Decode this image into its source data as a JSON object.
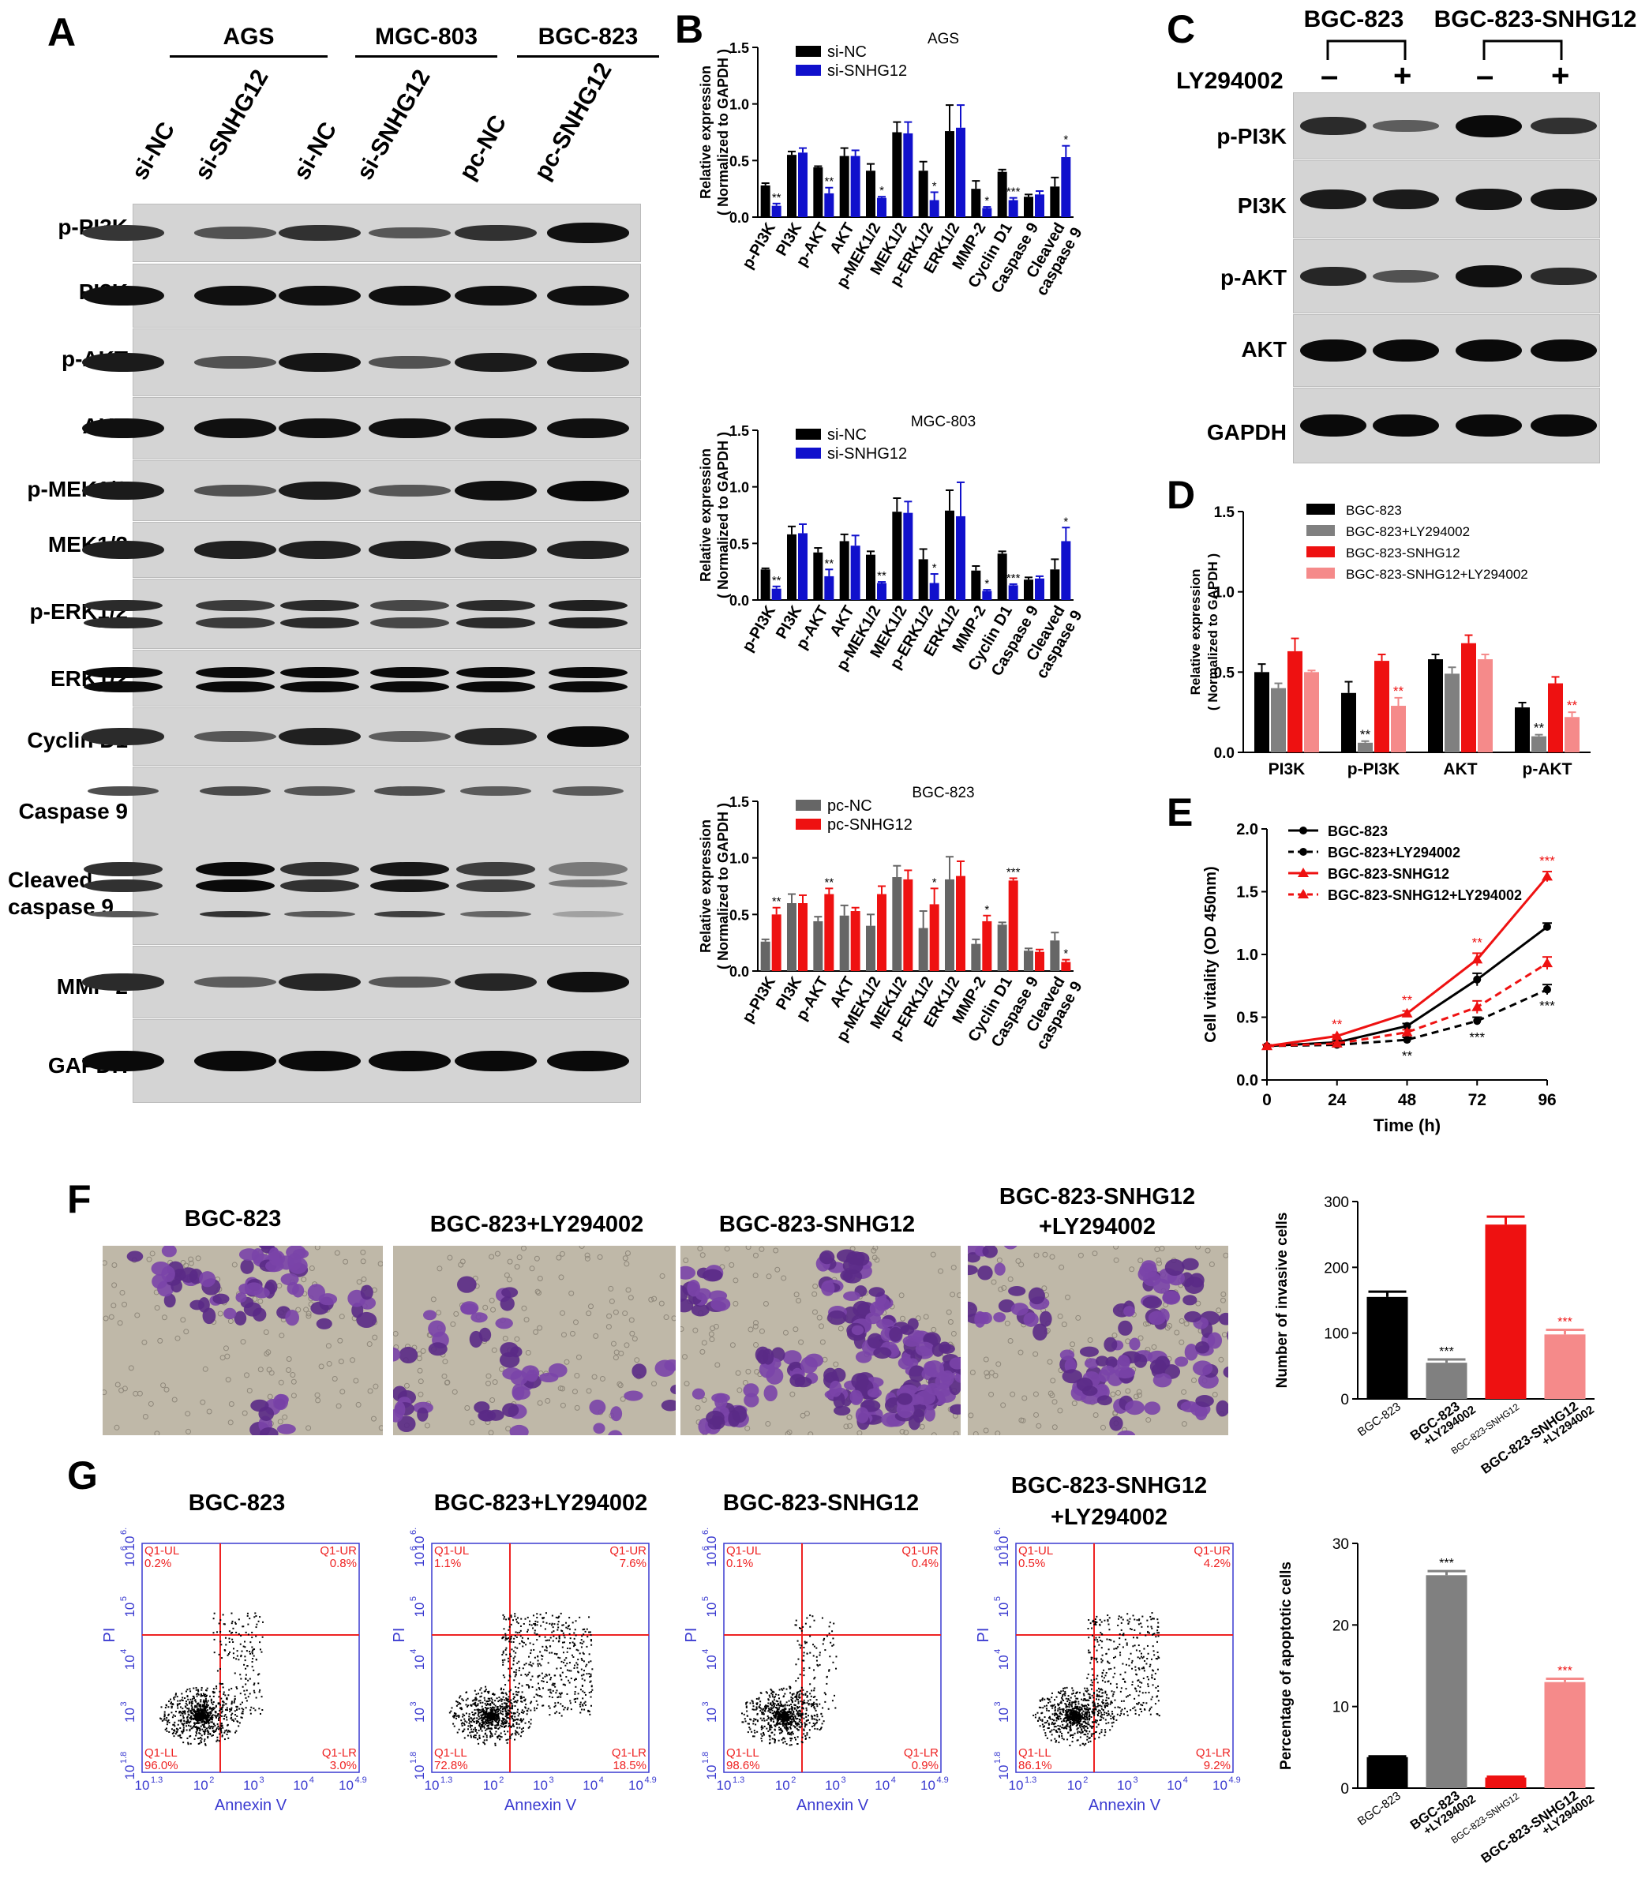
{
  "panel_letters": {
    "A": "A",
    "B": "B",
    "C": "C",
    "D": "D",
    "E": "E",
    "F": "F",
    "G": "G"
  },
  "panelA": {
    "cell_lines": [
      "AGS",
      "MGC-803",
      "BGC-823"
    ],
    "lanes": [
      "si-NC",
      "si-SNHG12",
      "si-NC",
      "si-SNHG12",
      "pc-NC",
      "pc-SNHG12"
    ],
    "rows": [
      "p-PI3K",
      "PI3K",
      "p-AKT",
      "AKT",
      "p-MEK1/2",
      "MEK1/2",
      "p-ERK1/2",
      "ERK1/2",
      "Cyclin D1",
      "Caspase 9",
      "Cleaved caspase 9",
      "MMP-2",
      "GAPDH"
    ],
    "cleaved_line1": "Cleaved",
    "cleaved_line2": "caspase 9"
  },
  "panelC": {
    "groups": [
      "BGC-823",
      "BGC-823-SNHG12"
    ],
    "treatment": "LY294002",
    "signs": [
      "–",
      "+",
      "–",
      "+"
    ],
    "rows": [
      "p-PI3K",
      "PI3K",
      "p-AKT",
      "AKT",
      "GAPDH"
    ]
  },
  "panelF": {
    "images": [
      "BGC-823",
      "BGC-823+LY294002",
      "BGC-823-SNHG12",
      "BGC-823-SNHG12 +LY294002"
    ]
  },
  "panelG": {
    "plots": [
      {
        "title": "BGC-823",
        "UL": "0.2%",
        "UR": "0.8%",
        "LL": "96.0%",
        "LR": "3.0%"
      },
      {
        "title": "BGC-823+LY294002",
        "UL": "1.1%",
        "UR": "7.6%",
        "LL": "72.8%",
        "LR": "18.5%"
      },
      {
        "title": "BGC-823-SNHG12",
        "UL": "0.1%",
        "UR": "0.4%",
        "LL": "98.6%",
        "LR": "0.9%"
      },
      {
        "title": "BGC-823-SNHG12 +LY294002",
        "UL": "0.5%",
        "UR": "4.2%",
        "LL": "86.1%",
        "LR": "9.2%"
      }
    ],
    "quad_labels": {
      "UL": "Q1-UL",
      "UR": "Q1-UR",
      "LL": "Q1-LL",
      "LR": "Q1-LR"
    },
    "xlabel": "Annexin V",
    "ylabel": "PI"
  },
  "chart_data": [
    {
      "id": "B1",
      "type": "bar",
      "title": "AGS",
      "ylabel": "Relative expression ( Normalized to GAPDH )",
      "ylim": [
        0,
        1.5
      ],
      "yticks": [
        "0.0",
        "0.5",
        "1.0",
        "1.5"
      ],
      "categories": [
        "p-PI3K",
        "PI3K",
        "p-AKT",
        "AKT",
        "p-MEK1/2",
        "MEK1/2",
        "p-ERK1/2",
        "ERK1/2",
        "MMP-2",
        "Cyclin D1",
        "Caspase 9",
        "Cleaved caspase 9"
      ],
      "series": [
        {
          "name": "si-NC",
          "color": "#000000",
          "values": [
            0.28,
            0.55,
            0.44,
            0.54,
            0.41,
            0.75,
            0.41,
            0.76,
            0.25,
            0.4,
            0.18,
            0.27
          ],
          "errors": [
            0.02,
            0.03,
            0.01,
            0.07,
            0.06,
            0.09,
            0.08,
            0.23,
            0.07,
            0.02,
            0.02,
            0.08
          ]
        },
        {
          "name": "si-SNHG12",
          "color": "#1010cc",
          "values": [
            0.1,
            0.57,
            0.21,
            0.54,
            0.17,
            0.74,
            0.15,
            0.79,
            0.08,
            0.15,
            0.2,
            0.53
          ],
          "errors": [
            0.02,
            0.04,
            0.05,
            0.05,
            0.01,
            0.1,
            0.07,
            0.2,
            0.01,
            0.02,
            0.03,
            0.1
          ]
        }
      ],
      "significance": [
        "**",
        "",
        "**",
        "",
        "*",
        "",
        "*",
        "",
        "*",
        "***",
        "",
        "*"
      ]
    },
    {
      "id": "B2",
      "type": "bar",
      "title": "MGC-803",
      "ylabel": "Relative expression ( Normalized to GAPDH )",
      "ylim": [
        0,
        1.5
      ],
      "yticks": [
        "0.0",
        "0.5",
        "1.0",
        "1.5"
      ],
      "categories": [
        "p-PI3K",
        "PI3K",
        "p-AKT",
        "AKT",
        "p-MEK1/2",
        "MEK1/2",
        "p-ERK1/2",
        "ERK1/2",
        "MMP-2",
        "Cyclin D1",
        "Caspase 9",
        "Cleaved caspase 9"
      ],
      "series": [
        {
          "name": "si-NC",
          "color": "#000000",
          "values": [
            0.27,
            0.58,
            0.42,
            0.52,
            0.4,
            0.78,
            0.36,
            0.79,
            0.26,
            0.41,
            0.18,
            0.27
          ],
          "errors": [
            0.01,
            0.07,
            0.04,
            0.06,
            0.03,
            0.12,
            0.09,
            0.18,
            0.04,
            0.02,
            0.02,
            0.09
          ]
        },
        {
          "name": "si-SNHG12",
          "color": "#1010cc",
          "values": [
            0.1,
            0.59,
            0.21,
            0.48,
            0.15,
            0.77,
            0.15,
            0.74,
            0.08,
            0.13,
            0.19,
            0.52
          ],
          "errors": [
            0.02,
            0.08,
            0.06,
            0.09,
            0.01,
            0.1,
            0.08,
            0.3,
            0.01,
            0.01,
            0.02,
            0.12
          ]
        }
      ],
      "significance": [
        "**",
        "",
        "**",
        "",
        "**",
        "",
        "*",
        "",
        "*",
        "***",
        "",
        "*"
      ]
    },
    {
      "id": "B3",
      "type": "bar",
      "title": "BGC-823",
      "ylabel": "Relative expression ( Normalized to GAPDH )",
      "ylim": [
        0,
        1.5
      ],
      "yticks": [
        "0.0",
        "0.5",
        "1.0",
        "1.5"
      ],
      "categories": [
        "p-PI3K",
        "PI3K",
        "p-AKT",
        "AKT",
        "p-MEK1/2",
        "MEK1/2",
        "p-ERK1/2",
        "ERK1/2",
        "MMP-2",
        "Cyclin D1",
        "Caspase 9",
        "Cleaved caspase 9"
      ],
      "series": [
        {
          "name": "pc-NC",
          "color": "#666666",
          "values": [
            0.26,
            0.6,
            0.44,
            0.49,
            0.4,
            0.83,
            0.38,
            0.81,
            0.24,
            0.41,
            0.18,
            0.27
          ],
          "errors": [
            0.02,
            0.08,
            0.04,
            0.09,
            0.1,
            0.1,
            0.15,
            0.2,
            0.04,
            0.02,
            0.02,
            0.07
          ]
        },
        {
          "name": "pc-SNHG12",
          "color": "#ee1111",
          "values": [
            0.5,
            0.6,
            0.68,
            0.53,
            0.68,
            0.81,
            0.59,
            0.84,
            0.44,
            0.8,
            0.17,
            0.08
          ],
          "errors": [
            0.06,
            0.07,
            0.05,
            0.03,
            0.07,
            0.08,
            0.14,
            0.13,
            0.05,
            0.02,
            0.02,
            0.02
          ]
        }
      ],
      "significance": [
        "**",
        "",
        "**",
        "",
        "",
        "",
        "*",
        "",
        "*",
        "***",
        "",
        "*"
      ]
    },
    {
      "id": "D",
      "type": "bar",
      "ylabel": "Relative expression ( Normalized to GAPDH )",
      "ylim": [
        0,
        1.5
      ],
      "yticks": [
        "0.0",
        "0.5",
        "1.0",
        "1.5"
      ],
      "categories": [
        "PI3K",
        "p-PI3K",
        "AKT",
        "p-AKT"
      ],
      "series": [
        {
          "name": "BGC-823",
          "color": "#000000",
          "values": [
            0.5,
            0.37,
            0.58,
            0.28
          ],
          "errors": [
            0.05,
            0.07,
            0.03,
            0.03
          ]
        },
        {
          "name": "BGC-823+LY294002",
          "color": "#808080",
          "values": [
            0.4,
            0.06,
            0.49,
            0.1
          ],
          "errors": [
            0.03,
            0.01,
            0.04,
            0.01
          ]
        },
        {
          "name": "BGC-823-SNHG12",
          "color": "#ee1111",
          "values": [
            0.63,
            0.57,
            0.68,
            0.43
          ],
          "errors": [
            0.08,
            0.04,
            0.05,
            0.04
          ]
        },
        {
          "name": "BGC-823-SNHG12+LY294002",
          "color": "#f58a8a",
          "values": [
            0.5,
            0.29,
            0.58,
            0.22
          ],
          "errors": [
            0.01,
            0.05,
            0.03,
            0.03
          ]
        }
      ],
      "significance_sets": [
        [
          "",
          "**",
          "",
          ""
        ],
        [
          "",
          "**",
          "**",
          "",
          ""
        ]
      ]
    },
    {
      "id": "E",
      "type": "line",
      "xlabel": "Time (h)",
      "ylabel": "Cell vitality (OD 450nm)",
      "x": [
        0,
        24,
        48,
        72,
        96
      ],
      "ylim": [
        0,
        2.0
      ],
      "yticks": [
        "0.0",
        "0.5",
        "1.0",
        "1.5",
        "2.0"
      ],
      "series": [
        {
          "name": "BGC-823",
          "color": "#000000",
          "dash": false,
          "marker": "circle",
          "values": [
            0.27,
            0.3,
            0.43,
            0.8,
            1.22
          ],
          "errors": [
            0.01,
            0.01,
            0.02,
            0.05,
            0.03
          ]
        },
        {
          "name": "BGC-823+LY294002",
          "color": "#000000",
          "dash": true,
          "marker": "circle",
          "values": [
            0.27,
            0.28,
            0.32,
            0.47,
            0.72
          ],
          "errors": [
            0.01,
            0.01,
            0.02,
            0.03,
            0.04
          ]
        },
        {
          "name": "BGC-823-SNHG12",
          "color": "#ee1111",
          "dash": false,
          "marker": "triangle",
          "values": [
            0.27,
            0.35,
            0.53,
            0.96,
            1.62
          ],
          "errors": [
            0.01,
            0.01,
            0.02,
            0.05,
            0.04
          ]
        },
        {
          "name": "BGC-823-SNHG12+LY294002",
          "color": "#ee1111",
          "dash": true,
          "marker": "triangle",
          "values": [
            0.27,
            0.29,
            0.38,
            0.58,
            0.93
          ],
          "errors": [
            0.01,
            0.01,
            0.02,
            0.05,
            0.05
          ]
        }
      ]
    },
    {
      "id": "F",
      "type": "bar",
      "ylabel": "Number of invasive cells",
      "ylim": [
        0,
        300
      ],
      "yticks": [
        "0",
        "100",
        "200",
        "300"
      ],
      "categories": [
        "BGC-823",
        "BGC-823 +LY294002",
        "BGC-823-SNHG12",
        "BGC-823-SNHG12 +LY294002"
      ],
      "values": [
        155,
        55,
        265,
        98
      ],
      "errors": [
        8,
        5,
        12,
        7
      ],
      "colors": [
        "#000000",
        "#808080",
        "#ee1111",
        "#f58a8a"
      ],
      "significance": [
        "",
        "***",
        "",
        "***"
      ]
    },
    {
      "id": "G",
      "type": "bar",
      "ylabel": "Percentage of apoptotic cells",
      "ylim": [
        0,
        30
      ],
      "yticks": [
        "0",
        "10",
        "20",
        "30"
      ],
      "categories": [
        "BGC-823",
        "BGC-823 +LY294002",
        "BGC-823-SNHG12",
        "BGC-823-SNHG12 +LY294002"
      ],
      "values": [
        3.8,
        26.1,
        1.3,
        13.0
      ],
      "errors": [
        0.1,
        0.5,
        0.1,
        0.4
      ],
      "colors": [
        "#000000",
        "#808080",
        "#ee1111",
        "#f58a8a"
      ],
      "significance": [
        "",
        "***",
        "",
        "***"
      ]
    }
  ]
}
